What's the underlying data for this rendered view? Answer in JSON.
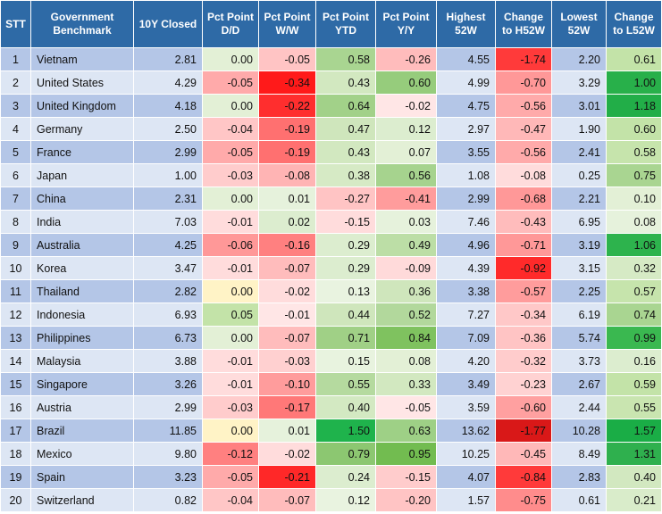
{
  "headers": [
    "STT",
    "Government Benchmark",
    "10Y Closed",
    "Pct Point D/D",
    "Pct Point W/W",
    "Pct Point YTD",
    "Pct Point Y/Y",
    "Highest 52W",
    "Change to H52W",
    "Lowest 52W",
    "Change to L52W"
  ],
  "rows": [
    {
      "stt": "1",
      "name": "Vietnam",
      "closed": "2.81",
      "dd": "0.00",
      "ww": "-0.05",
      "ytd": "0.58",
      "yy": "-0.26",
      "high": "4.55",
      "chigh": "-1.74",
      "low": "2.20",
      "clow": "0.61"
    },
    {
      "stt": "2",
      "name": "United States",
      "closed": "4.29",
      "dd": "-0.05",
      "ww": "-0.34",
      "ytd": "0.43",
      "yy": "0.60",
      "high": "4.99",
      "chigh": "-0.70",
      "low": "3.29",
      "clow": "1.00"
    },
    {
      "stt": "3",
      "name": "United Kingdom",
      "closed": "4.18",
      "dd": "0.00",
      "ww": "-0.22",
      "ytd": "0.64",
      "yy": "-0.02",
      "high": "4.75",
      "chigh": "-0.56",
      "low": "3.01",
      "clow": "1.18"
    },
    {
      "stt": "4",
      "name": "Germany",
      "closed": "2.50",
      "dd": "-0.04",
      "ww": "-0.19",
      "ytd": "0.47",
      "yy": "0.12",
      "high": "2.97",
      "chigh": "-0.47",
      "low": "1.90",
      "clow": "0.60"
    },
    {
      "stt": "5",
      "name": "France",
      "closed": "2.99",
      "dd": "-0.05",
      "ww": "-0.19",
      "ytd": "0.43",
      "yy": "0.07",
      "high": "3.55",
      "chigh": "-0.56",
      "low": "2.41",
      "clow": "0.58"
    },
    {
      "stt": "6",
      "name": "Japan",
      "closed": "1.00",
      "dd": "-0.03",
      "ww": "-0.08",
      "ytd": "0.38",
      "yy": "0.56",
      "high": "1.08",
      "chigh": "-0.08",
      "low": "0.25",
      "clow": "0.75"
    },
    {
      "stt": "7",
      "name": "China",
      "closed": "2.31",
      "dd": "0.00",
      "ww": "0.01",
      "ytd": "-0.27",
      "yy": "-0.41",
      "high": "2.99",
      "chigh": "-0.68",
      "low": "2.21",
      "clow": "0.10"
    },
    {
      "stt": "8",
      "name": "India",
      "closed": "7.03",
      "dd": "-0.01",
      "ww": "0.02",
      "ytd": "-0.15",
      "yy": "0.03",
      "high": "7.46",
      "chigh": "-0.43",
      "low": "6.95",
      "clow": "0.08"
    },
    {
      "stt": "9",
      "name": "Australia",
      "closed": "4.25",
      "dd": "-0.06",
      "ww": "-0.16",
      "ytd": "0.29",
      "yy": "0.49",
      "high": "4.96",
      "chigh": "-0.71",
      "low": "3.19",
      "clow": "1.06"
    },
    {
      "stt": "10",
      "name": "Korea",
      "closed": "3.47",
      "dd": "-0.01",
      "ww": "-0.07",
      "ytd": "0.29",
      "yy": "-0.09",
      "high": "4.39",
      "chigh": "-0.92",
      "low": "3.15",
      "clow": "0.32"
    },
    {
      "stt": "11",
      "name": "Thailand",
      "closed": "2.82",
      "dd": "0.00",
      "ww": "-0.02",
      "ytd": "0.13",
      "yy": "0.36",
      "high": "3.38",
      "chigh": "-0.57",
      "low": "2.25",
      "clow": "0.57"
    },
    {
      "stt": "12",
      "name": "Indonesia",
      "closed": "6.93",
      "dd": "0.05",
      "ww": "-0.01",
      "ytd": "0.44",
      "yy": "0.52",
      "high": "7.27",
      "chigh": "-0.34",
      "low": "6.19",
      "clow": "0.74"
    },
    {
      "stt": "13",
      "name": "Philippines",
      "closed": "6.73",
      "dd": "0.00",
      "ww": "-0.07",
      "ytd": "0.71",
      "yy": "0.84",
      "high": "7.09",
      "chigh": "-0.36",
      "low": "5.74",
      "clow": "0.99"
    },
    {
      "stt": "14",
      "name": "Malaysia",
      "closed": "3.88",
      "dd": "-0.01",
      "ww": "-0.03",
      "ytd": "0.15",
      "yy": "0.08",
      "high": "4.20",
      "chigh": "-0.32",
      "low": "3.73",
      "clow": "0.16"
    },
    {
      "stt": "15",
      "name": "Singapore",
      "closed": "3.26",
      "dd": "-0.01",
      "ww": "-0.10",
      "ytd": "0.55",
      "yy": "0.33",
      "high": "3.49",
      "chigh": "-0.23",
      "low": "2.67",
      "clow": "0.59"
    },
    {
      "stt": "16",
      "name": "Austria",
      "closed": "2.99",
      "dd": "-0.03",
      "ww": "-0.17",
      "ytd": "0.40",
      "yy": "-0.05",
      "high": "3.59",
      "chigh": "-0.60",
      "low": "2.44",
      "clow": "0.55"
    },
    {
      "stt": "17",
      "name": "Brazil",
      "closed": "11.85",
      "dd": "0.00",
      "ww": "0.01",
      "ytd": "1.50",
      "yy": "0.63",
      "high": "13.62",
      "chigh": "-1.77",
      "low": "10.28",
      "clow": "1.57"
    },
    {
      "stt": "18",
      "name": "Mexico",
      "closed": "9.80",
      "dd": "-0.12",
      "ww": "-0.02",
      "ytd": "0.79",
      "yy": "0.95",
      "high": "10.25",
      "chigh": "-0.45",
      "low": "8.49",
      "clow": "1.31"
    },
    {
      "stt": "19",
      "name": "Spain",
      "closed": "3.23",
      "dd": "-0.05",
      "ww": "-0.21",
      "ytd": "0.24",
      "yy": "-0.15",
      "high": "4.07",
      "chigh": "-0.84",
      "low": "2.83",
      "clow": "0.40"
    },
    {
      "stt": "20",
      "name": "Switzerland",
      "closed": "0.82",
      "dd": "-0.04",
      "ww": "-0.07",
      "ytd": "0.12",
      "yy": "-0.20",
      "high": "1.57",
      "chigh": "-0.75",
      "low": "0.61",
      "clow": "0.21"
    }
  ],
  "heat_colors": {
    "dd": [
      "#e3f0d6",
      "#ffaaaa",
      "#e3f0d6",
      "#ffc6c6",
      "#ffaaaa",
      "#ffcccc",
      "#e3f0d6",
      "#ffdcdc",
      "#ff9898",
      "#ffdcdc",
      "#fff3c6",
      "#c3e3a8",
      "#e3f0d6",
      "#ffdcdc",
      "#ffdcdc",
      "#ffcccc",
      "#fff3c6",
      "#ff8080",
      "#ffaaaa",
      "#ffc6c6"
    ],
    "ww": [
      "#ffc4c4",
      "#ff1a1a",
      "#ff2e2e",
      "#ff7070",
      "#ff7070",
      "#ffb4b4",
      "#e6f2dc",
      "#dcedcf",
      "#ff8080",
      "#ffbcbc",
      "#ffdcdc",
      "#ffe6e6",
      "#ffbcbc",
      "#ffd0d0",
      "#ff9c9c",
      "#ff7878",
      "#e6f2dc",
      "#ffdcdc",
      "#ff2828",
      "#ffbcbc"
    ],
    "ytd": [
      "#a9d591",
      "#d2e8c0",
      "#a2d189",
      "#cfe6bc",
      "#d2e8c0",
      "#d6eac5",
      "#ffc4c4",
      "#ffdcdc",
      "#dcedcf",
      "#dcedcf",
      "#e9f3e0",
      "#cfe6bc",
      "#a0d086",
      "#e8f3df",
      "#b5da9f",
      "#d3e9c2",
      "#1fb34c",
      "#8cc771",
      "#dcedcf",
      "#e9f3e0"
    ],
    "yy": [
      "#ffbcbc",
      "#96cc7c",
      "#ffe6e6",
      "#dcedcf",
      "#e3f0d6",
      "#a6d38e",
      "#ff9c9c",
      "#e6f2dc",
      "#bcdea6",
      "#ffdada",
      "#cfe6bc",
      "#b2d89c",
      "#7fc25f",
      "#e3f0d6",
      "#d2e8c0",
      "#ffe6e6",
      "#9ed086",
      "#72bc50",
      "#ffcccc",
      "#ffc4c4"
    ],
    "chigh": [
      "#ff3a3a",
      "#ff9898",
      "#ffaaaa",
      "#ffb8b8",
      "#ffaaaa",
      "#ffdcdc",
      "#ff9898",
      "#ffbcbc",
      "#ff9898",
      "#ff2a2a",
      "#ff9c9c",
      "#ffc8c8",
      "#ffc4c4",
      "#ffcccc",
      "#ffd2d2",
      "#ffa0a0",
      "#d91818",
      "#ffb8b8",
      "#ff3a3a",
      "#ff8c8c"
    ],
    "clow": [
      "#c3e3a8",
      "#28b04a",
      "#22ae48",
      "#c3e3a8",
      "#c6e4ac",
      "#a9d591",
      "#e3f0d6",
      "#e6f2dc",
      "#2db34d",
      "#d6eac5",
      "#c6e4ac",
      "#a9d591",
      "#3ab850",
      "#dcedcf",
      "#c3e3a8",
      "#c9e5b0",
      "#1aad46",
      "#2fb04e",
      "#d2e8c0",
      "#d9ecca"
    ]
  }
}
